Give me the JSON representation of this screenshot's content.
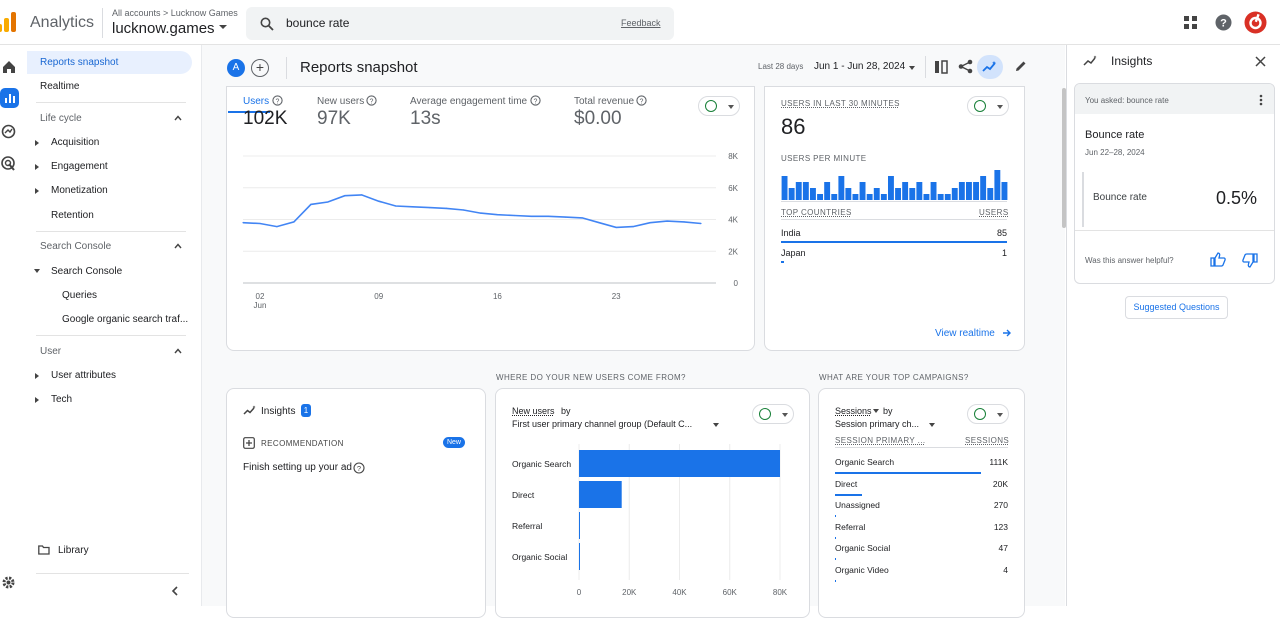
{
  "app": {
    "product": "Analytics",
    "account_crumb": "All accounts > Lucknow Games",
    "property": "lucknow.games"
  },
  "search": {
    "query": "bounce rate",
    "feedback": "Feedback"
  },
  "nav": {
    "reports_snapshot": "Reports snapshot",
    "realtime": "Realtime",
    "lifecycle": "Life cycle",
    "acquisition": "Acquisition",
    "engagement": "Engagement",
    "monetization": "Monetization",
    "retention": "Retention",
    "search_console_head": "Search Console",
    "search_console": "Search Console",
    "queries": "Queries",
    "google_organic": "Google organic search traf...",
    "user_head": "User",
    "user_attributes": "User attributes",
    "tech": "Tech",
    "library": "Library"
  },
  "header": {
    "avatar": "A",
    "title": "Reports snapshot",
    "range_label": "Last 28 days",
    "range": "Jun 1 - Jun 28, 2024"
  },
  "overview": {
    "metrics": [
      {
        "label": "Users",
        "value": "102K"
      },
      {
        "label": "New users",
        "value": "97K"
      },
      {
        "label": "Average engagement time",
        "value": "13s"
      },
      {
        "label": "Total revenue",
        "value": "$0.00"
      }
    ],
    "y_ticks": [
      "8K",
      "6K",
      "4K",
      "2K",
      "0"
    ],
    "x_ticks": [
      "02",
      "09",
      "16",
      "23"
    ],
    "x_month": "Jun"
  },
  "chart_data": {
    "type": "line",
    "x": [
      "Jun 1",
      "Jun 2",
      "Jun 3",
      "Jun 4",
      "Jun 5",
      "Jun 6",
      "Jun 7",
      "Jun 8",
      "Jun 9",
      "Jun 10",
      "Jun 11",
      "Jun 12",
      "Jun 13",
      "Jun 14",
      "Jun 15",
      "Jun 16",
      "Jun 17",
      "Jun 18",
      "Jun 19",
      "Jun 20",
      "Jun 21",
      "Jun 22",
      "Jun 23",
      "Jun 24",
      "Jun 25",
      "Jun 26",
      "Jun 27",
      "Jun 28"
    ],
    "series": [
      {
        "name": "Users",
        "values": [
          3800,
          3750,
          3550,
          3850,
          4950,
          5100,
          5500,
          5550,
          5150,
          4850,
          4800,
          4750,
          4700,
          4600,
          4400,
          4300,
          4250,
          4200,
          4200,
          4150,
          4100,
          3800,
          3500,
          3550,
          3800,
          3900,
          3850,
          3750
        ]
      }
    ],
    "ylim": [
      0,
      8000
    ]
  },
  "realtime": {
    "label": "USERS IN LAST 30 MINUTES",
    "value": "86",
    "per_minute": "USERS PER MINUTE",
    "bars": [
      4,
      2,
      3,
      3,
      2,
      1,
      3,
      1,
      4,
      2,
      1,
      3,
      1,
      2,
      1,
      4,
      2,
      3,
      2,
      3,
      1,
      3,
      1,
      1,
      2,
      3,
      3,
      3,
      4,
      2,
      5,
      3
    ],
    "countries_head": "TOP COUNTRIES",
    "users_head": "USERS",
    "countries": [
      {
        "name": "India",
        "users": "85"
      },
      {
        "name": "Japan",
        "users": "1"
      }
    ],
    "view_link": "View realtime"
  },
  "insights_card": {
    "title": "Insights",
    "badge": "1",
    "rec": "RECOMMENDATION",
    "new": "New",
    "text": "Finish setting up your ad"
  },
  "new_users": {
    "section": "WHERE DO YOUR NEW USERS COME FROM?",
    "metric": "New users",
    "by": "by",
    "dimension": "First user primary channel group (Default C...",
    "categories": [
      "Organic Search",
      "Direct",
      "Referral",
      "Organic Social"
    ],
    "values": [
      80000,
      17000,
      300,
      200
    ],
    "x_ticks": [
      "0",
      "20K",
      "40K",
      "60K",
      "80K"
    ]
  },
  "campaigns": {
    "section": "WHAT ARE YOUR TOP CAMPAIGNS?",
    "metric": "Sessions",
    "by": "by",
    "dimension": "Session primary ch...",
    "col1": "SESSION PRIMARY ...",
    "col2": "SESSIONS",
    "rows": [
      {
        "name": "Organic Search",
        "value": "111K"
      },
      {
        "name": "Direct",
        "value": "20K"
      },
      {
        "name": "Unassigned",
        "value": "270"
      },
      {
        "name": "Referral",
        "value": "123"
      },
      {
        "name": "Organic Social",
        "value": "47"
      },
      {
        "name": "Organic Video",
        "value": "4"
      }
    ]
  },
  "insights_panel": {
    "title": "Insights",
    "asked": "You asked: bounce rate",
    "metric_title": "Bounce rate",
    "date": "Jun 22–28, 2024",
    "metric": "Bounce rate",
    "value": "0.5%",
    "helpful": "Was this answer helpful?",
    "suggested": "Suggested Questions"
  },
  "colors": {
    "accent": "#1a73e8",
    "logo_orange": "#f9ab00",
    "logo_dark": "#e37400",
    "check_green": "#188038"
  }
}
